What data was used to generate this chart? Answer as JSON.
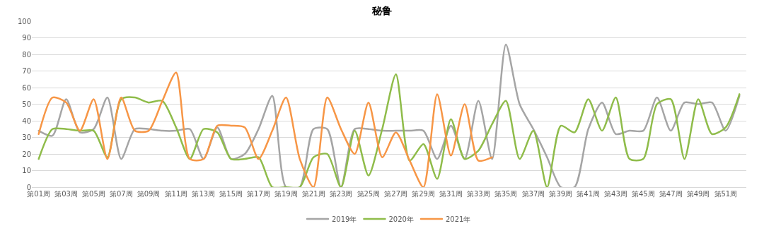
{
  "chart_data": {
    "type": "line",
    "title": "秘鲁",
    "categories": [
      "第01周",
      null,
      "第03周",
      null,
      "第05周",
      null,
      "第07周",
      null,
      "第09周",
      null,
      "第11周",
      null,
      "第13周",
      null,
      "第15周",
      null,
      "第17周",
      null,
      "第19周",
      null,
      "第21周",
      null,
      "第23周",
      null,
      "第25周",
      null,
      "第27周",
      null,
      "第29周",
      null,
      "第31周",
      null,
      "第33周",
      null,
      "第35周",
      null,
      "第37周",
      null,
      "第39周",
      null,
      "第41周",
      null,
      "第43周",
      null,
      "第45周",
      null,
      "第47周",
      null,
      "第49周",
      null,
      "第51周",
      null
    ],
    "series": [
      {
        "name": "2019年",
        "color": "#a5a5a5",
        "values": [
          34,
          31,
          53,
          33,
          35,
          54,
          17,
          35,
          35,
          34,
          34,
          35,
          17,
          36,
          17,
          20,
          35,
          55,
          0,
          0,
          35,
          35,
          0,
          35,
          35,
          34,
          34,
          34,
          34,
          17,
          37,
          17,
          52,
          17,
          86,
          50,
          35,
          18,
          0,
          0,
          35,
          51,
          32,
          34,
          34,
          54,
          34,
          51,
          50,
          51,
          34,
          55
        ]
      },
      {
        "name": "2020年",
        "color": "#8fbc4a",
        "values": [
          17,
          35,
          35,
          34,
          34,
          18,
          53,
          54,
          51,
          52,
          36,
          17,
          35,
          33,
          17,
          17,
          18,
          0,
          0,
          0,
          18,
          20,
          0,
          34,
          7,
          35,
          68,
          16,
          26,
          5,
          41,
          17,
          22,
          38,
          52,
          17,
          34,
          0,
          37,
          33,
          53,
          34,
          54,
          17,
          17,
          50,
          53,
          17,
          53,
          32,
          36,
          56
        ]
      },
      {
        "name": "2021年",
        "color": "#f79646",
        "values": [
          32,
          54,
          51,
          34,
          53,
          17,
          54,
          34,
          34,
          52,
          69,
          17,
          17,
          37,
          37,
          36,
          17,
          34,
          54,
          17,
          0,
          54,
          35,
          20,
          51,
          18,
          33,
          16,
          0,
          56,
          19,
          50,
          16,
          18,
          null,
          null,
          null,
          null,
          null,
          null,
          null,
          null,
          null,
          null,
          null,
          null,
          null,
          null,
          null,
          null,
          null,
          null
        ]
      }
    ],
    "ylim": [
      0,
      100
    ],
    "yticks": [
      0,
      10,
      20,
      30,
      40,
      50,
      60,
      70,
      80,
      90,
      100
    ],
    "grid": "y",
    "legend": "bottom",
    "line_style": "solid",
    "marker": "none"
  }
}
